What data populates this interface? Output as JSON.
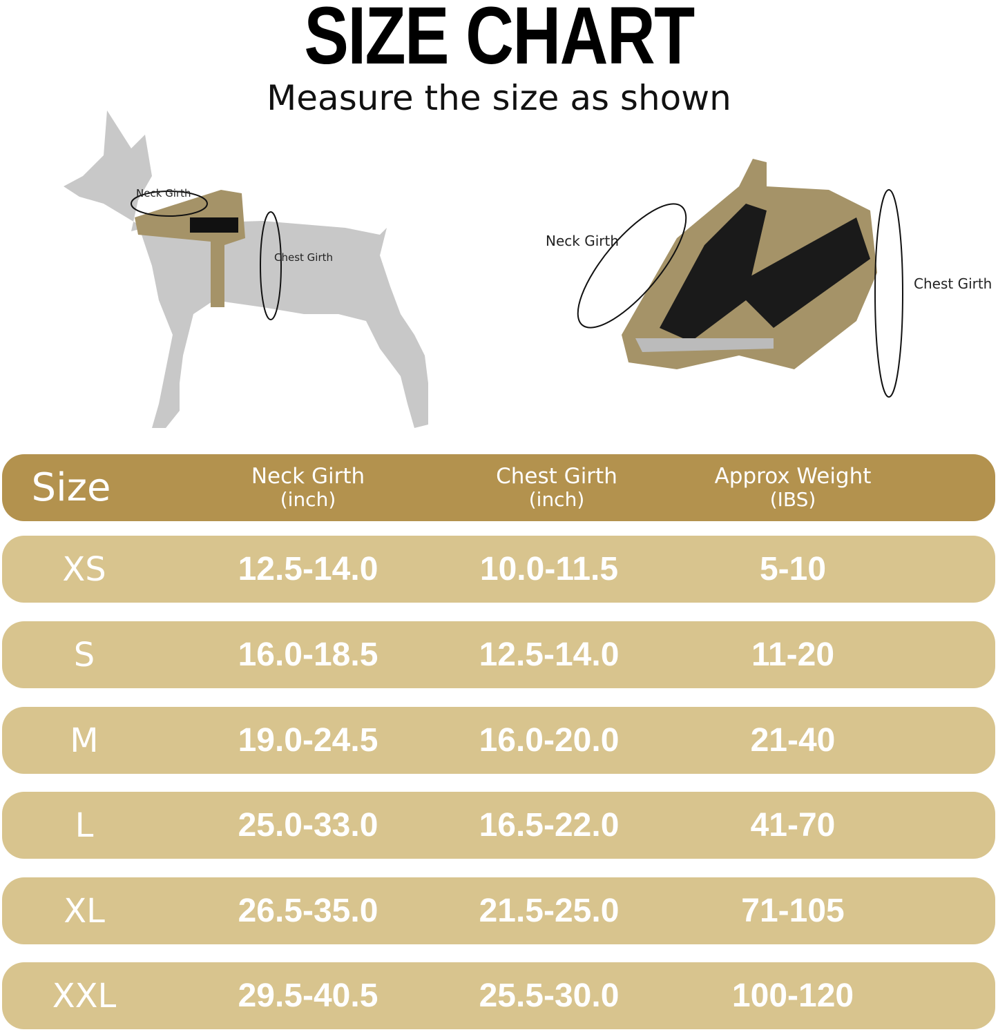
{
  "title": "SIZE CHART",
  "subtitle": "Measure the size as shown",
  "diagram_left": {
    "neck_label": "Neck Girth",
    "chest_label": "Chest Girth"
  },
  "diagram_right": {
    "neck_label": "Neck Girth",
    "chest_label": "Chest Girth"
  },
  "colors": {
    "header": "#b3924e",
    "row": "#d8c48e",
    "text": "#ffffff"
  },
  "table": {
    "headers": [
      {
        "label": "Size",
        "unit": ""
      },
      {
        "label": "Neck Girth",
        "unit": "(inch)"
      },
      {
        "label": "Chest Girth",
        "unit": "(inch)"
      },
      {
        "label": "Approx Weight",
        "unit": "(IBS)"
      }
    ],
    "rows": [
      [
        "XS",
        "12.5-14.0",
        "10.0-11.5",
        "5-10"
      ],
      [
        "S",
        "16.0-18.5",
        "12.5-14.0",
        "11-20"
      ],
      [
        "M",
        "19.0-24.5",
        "16.0-20.0",
        "21-40"
      ],
      [
        "L",
        "25.0-33.0",
        "16.5-22.0",
        "41-70"
      ],
      [
        "XL",
        "26.5-35.0",
        "21.5-25.0",
        "71-105"
      ],
      [
        "XXL",
        "29.5-40.5",
        "25.5-30.0",
        "100-120"
      ]
    ]
  }
}
